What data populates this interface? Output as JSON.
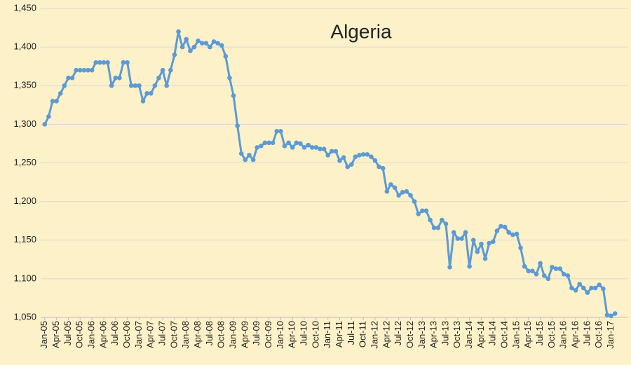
{
  "chart_data": {
    "type": "line",
    "title": "Algeria",
    "categories": [
      "Jan-05",
      null,
      null,
      "Apr-05",
      null,
      null,
      "Jul-05",
      null,
      null,
      "Oct-05",
      null,
      null,
      "Jan-06",
      null,
      null,
      "Apr-06",
      null,
      null,
      "Jul-06",
      null,
      null,
      "Oct-06",
      null,
      null,
      "Jan-07",
      null,
      null,
      "Apr-07",
      null,
      null,
      "Jul-07",
      null,
      null,
      "Oct-07",
      null,
      null,
      "Jan-08",
      null,
      null,
      "Apr-08",
      null,
      null,
      "Jul-08",
      null,
      null,
      "Oct-08",
      null,
      null,
      "Jan-09",
      null,
      null,
      "Apr-09",
      null,
      null,
      "Jul-09",
      null,
      null,
      "Oct-09",
      null,
      null,
      "Jan-10",
      null,
      null,
      "Apr-10",
      null,
      null,
      "Jul-10",
      null,
      null,
      "Oct-10",
      null,
      null,
      "Jan-11",
      null,
      null,
      "Apr-11",
      null,
      null,
      "Jul-11",
      null,
      null,
      "Oct-11",
      null,
      null,
      "Jan-12",
      null,
      null,
      "Apr-12",
      null,
      null,
      "Jul-12",
      null,
      null,
      "Oct-12",
      null,
      null,
      "Jan-13",
      null,
      null,
      "Apr-13",
      null,
      null,
      "Jul-13",
      null,
      null,
      "Oct-13",
      null,
      null,
      "Jan-14",
      null,
      null,
      "Apr-14",
      null,
      null,
      "Jul-14",
      null,
      null,
      "Oct-14",
      null,
      null,
      "Jan-15",
      null,
      null,
      "Apr-15",
      null,
      null,
      "Jul-15",
      null,
      null,
      "Oct-15",
      null,
      null,
      "Jan-16",
      null,
      null,
      "Apr-16",
      null,
      null,
      "Jul-16",
      null,
      null,
      "Oct-16",
      null,
      null,
      "Jan-17",
      null
    ],
    "values": [
      1300,
      1310,
      1330,
      1330,
      1340,
      1350,
      1360,
      1360,
      1370,
      1370,
      1370,
      1370,
      1370,
      1380,
      1380,
      1380,
      1380,
      1350,
      1360,
      1360,
      1380,
      1380,
      1350,
      1350,
      1350,
      1330,
      1340,
      1340,
      1350,
      1360,
      1370,
      1350,
      1370,
      1390,
      1420,
      1400,
      1410,
      1395,
      1400,
      1408,
      1405,
      1405,
      1400,
      1407,
      1405,
      1402,
      1388,
      1360,
      1337,
      1298,
      1262,
      1254,
      1260,
      1254,
      1270,
      1272,
      1276,
      1276,
      1276,
      1291,
      1291,
      1272,
      1276,
      1270,
      1276,
      1275,
      1270,
      1273,
      1270,
      1270,
      1268,
      1268,
      1260,
      1265,
      1265,
      1253,
      1257,
      1245,
      1248,
      1258,
      1260,
      1261,
      1261,
      1258,
      1253,
      1245,
      1243,
      1213,
      1222,
      1218,
      1208,
      1212,
      1213,
      1208,
      1200,
      1184,
      1188,
      1188,
      1176,
      1166,
      1166,
      1176,
      1171,
      1115,
      1160,
      1152,
      1152,
      1160,
      1116,
      1150,
      1135,
      1145,
      1126,
      1146,
      1148,
      1162,
      1168,
      1167,
      1160,
      1157,
      1158,
      1140,
      1116,
      1110,
      1110,
      1106,
      1120,
      1104,
      1100,
      1115,
      1113,
      1113,
      1106,
      1104,
      1088,
      1085,
      1093,
      1088,
      1082,
      1088,
      1088,
      1092,
      1087,
      1053,
      1052,
      1055
    ],
    "color": "#5b9bd5",
    "ylim": [
      1050,
      1450
    ],
    "yticks": [
      {
        "value": 1050,
        "label": "1,050"
      },
      {
        "value": 1100,
        "label": "1,100"
      },
      {
        "value": 1150,
        "label": "1,150"
      },
      {
        "value": 1200,
        "label": "1,200"
      },
      {
        "value": 1250,
        "label": "1,250"
      },
      {
        "value": 1300,
        "label": "1,300"
      },
      {
        "value": 1350,
        "label": "1,350"
      },
      {
        "value": 1400,
        "label": "1,400"
      },
      {
        "value": 1450,
        "label": "1,450"
      }
    ],
    "grid": true
  }
}
